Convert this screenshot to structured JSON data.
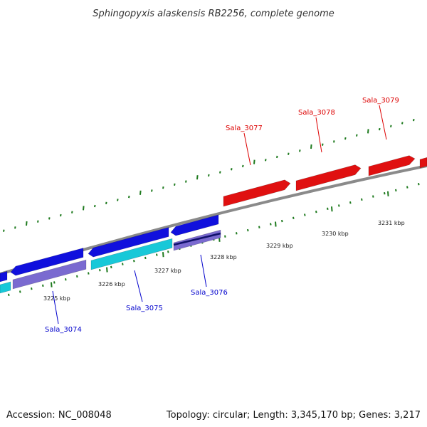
{
  "title": "Sphingopyxis alaskensis RB2256, complete genome",
  "footer": {
    "accession": "Accession: NC_008048",
    "summary": "Topology: circular; Length: 3,345,170 bp; Genes: 3,217"
  },
  "colors": {
    "backbone": "#8a8a8a",
    "tick": "#1e7a1e",
    "forward_gene": "#e01010",
    "reverse_gene": "#1010dd",
    "cds_cyan": "#18c8d8",
    "cds_purple": "#7a6ad0",
    "forward_label": "#dd0000",
    "reverse_label": "#0000cc"
  },
  "tick_labels": {
    "inner": [
      "3225 kbp",
      "3226 kbp",
      "3227 kbp",
      "3228 kbp",
      "3229 kbp",
      "3230 kbp",
      "3231 kbp"
    ]
  },
  "genes": {
    "forward": [
      {
        "label": "Sala_3077"
      },
      {
        "label": "Sala_3078"
      },
      {
        "label": "Sala_3079"
      }
    ],
    "reverse": [
      {
        "label": "Sala_3074"
      },
      {
        "label": "Sala_3075"
      },
      {
        "label": "Sala_3076"
      }
    ]
  }
}
